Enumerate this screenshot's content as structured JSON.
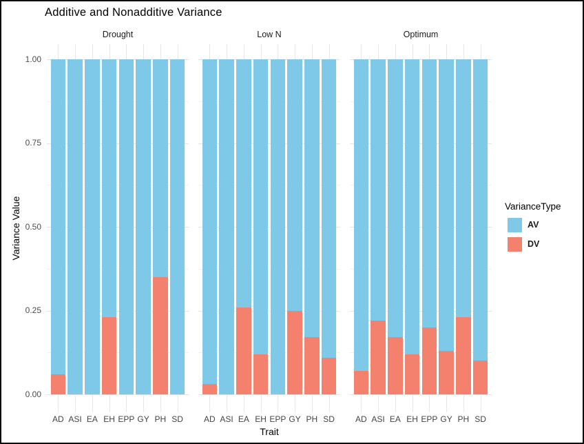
{
  "chart_data": {
    "type": "bar",
    "subtype": "stacked-bars-faceted",
    "title": "Additive and Nonadditive Variance",
    "xlabel": "Trait",
    "ylabel": "Variance Value",
    "ylim": [
      0,
      1
    ],
    "ytick_labels": [
      "1.00",
      "0.75",
      "0.50",
      "0.25",
      "0.00"
    ],
    "ytick_values": [
      1,
      0.75,
      0.5,
      0.25,
      0
    ],
    "grid": "light gray horizontal major (0.25 steps) and minor (0.125 steps) lines, vertical lines at each category",
    "legend_position": "right",
    "legend": {
      "title": "VarianceType",
      "entries": [
        {
          "label": "AV",
          "color": "#7ec9e8"
        },
        {
          "label": "DV",
          "color": "#f4806e"
        }
      ]
    },
    "categories": [
      "AD",
      "ASI",
      "EA",
      "EH",
      "EPP",
      "GY",
      "PH",
      "SD"
    ],
    "facets": [
      {
        "label": "Drought",
        "series": [
          {
            "name": "AV",
            "values": [
              0.94,
              1.0,
              1.0,
              0.77,
              1.0,
              1.0,
              0.65,
              1.0
            ]
          },
          {
            "name": "DV",
            "values": [
              0.06,
              0.0,
              0.0,
              0.23,
              0.0,
              0.0,
              0.35,
              0.0
            ]
          }
        ]
      },
      {
        "label": "Low N",
        "series": [
          {
            "name": "AV",
            "values": [
              0.97,
              1.0,
              0.74,
              0.88,
              1.0,
              0.75,
              0.83,
              0.89
            ]
          },
          {
            "name": "DV",
            "values": [
              0.03,
              0.0,
              0.26,
              0.12,
              0.0,
              0.25,
              0.17,
              0.11
            ]
          }
        ]
      },
      {
        "label": "Optimum",
        "series": [
          {
            "name": "AV",
            "values": [
              0.93,
              0.78,
              0.83,
              0.88,
              0.8,
              0.87,
              0.77,
              0.9
            ]
          },
          {
            "name": "DV",
            "values": [
              0.07,
              0.22,
              0.17,
              0.12,
              0.2,
              0.13,
              0.23,
              0.1
            ]
          }
        ]
      }
    ],
    "colors": {
      "AV": "#7ec9e8",
      "DV": "#f4806e"
    }
  }
}
